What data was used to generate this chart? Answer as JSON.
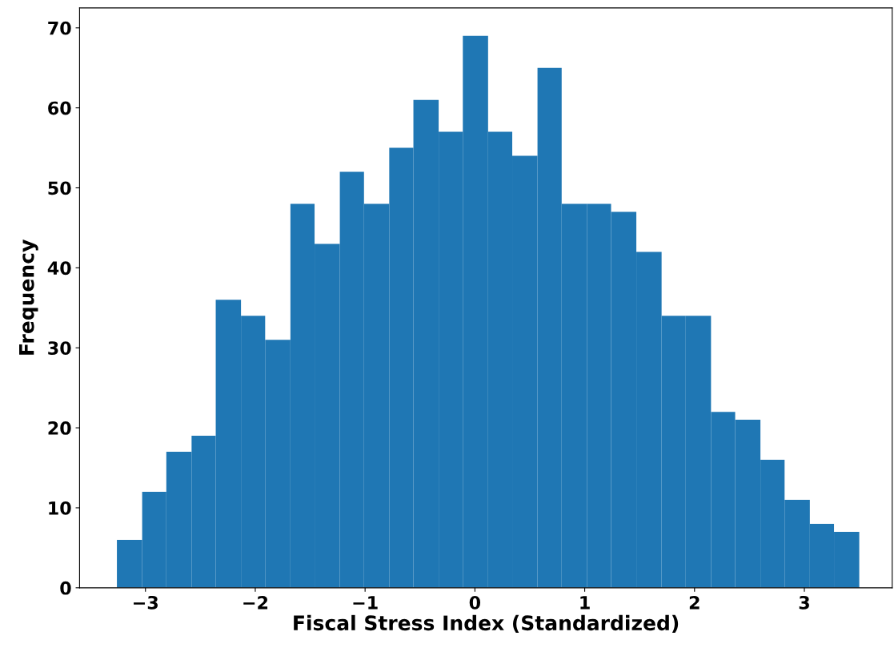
{
  "chart_data": {
    "type": "histogram",
    "xlabel": "Fiscal Stress Index (Standardized)",
    "ylabel": "Frequency",
    "color": "#1f77b4",
    "bins": [
      -3.26,
      -3.03,
      -2.81,
      -2.58,
      -2.36,
      -2.13,
      -1.91,
      -1.68,
      -1.46,
      -1.23,
      -1.01,
      -0.78,
      -0.56,
      -0.33,
      -0.11,
      0.12,
      0.34,
      0.57,
      0.79,
      1.02,
      1.24,
      1.47,
      1.7,
      1.92,
      2.15,
      2.37,
      2.6,
      2.82,
      3.05,
      3.27,
      3.5
    ],
    "values": [
      6,
      12,
      17,
      19,
      36,
      34,
      31,
      48,
      43,
      52,
      48,
      55,
      61,
      57,
      69,
      57,
      54,
      65,
      48,
      48,
      47,
      42,
      34,
      34,
      22,
      21,
      16,
      11,
      8,
      7
    ],
    "xlim": [
      -3.6,
      3.8
    ],
    "ylim": [
      0,
      72.5
    ],
    "xticks": [
      {
        "value": -3,
        "label": "−3"
      },
      {
        "value": -2,
        "label": "−2"
      },
      {
        "value": -1,
        "label": "−1"
      },
      0,
      1,
      2,
      3
    ],
    "yticks": [
      0,
      10,
      20,
      30,
      40,
      50,
      60,
      70
    ],
    "grid": false,
    "legend": false
  }
}
